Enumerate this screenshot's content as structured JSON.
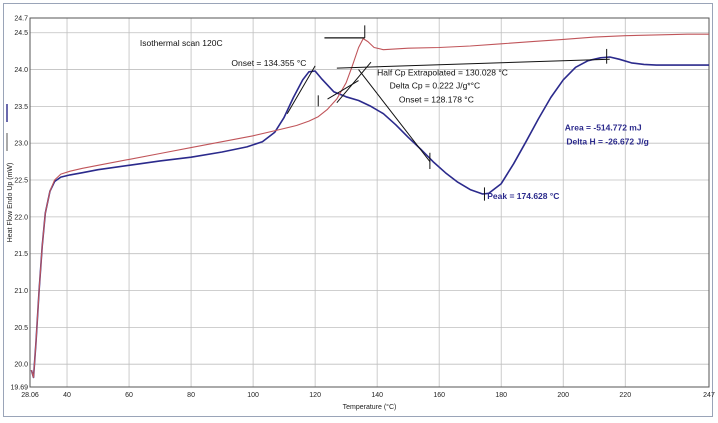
{
  "chart_data": {
    "type": "line",
    "title": "",
    "xlabel": "Temperature (°C)",
    "ylabel": "Heat Flow Endo Up (mW)",
    "xlim": [
      28.06,
      247
    ],
    "ylim": [
      19.69,
      24.7
    ],
    "x_tick_labels": [
      {
        "label": "28.06",
        "value": 28.06
      },
      {
        "label": "40",
        "value": 40
      },
      {
        "label": "60",
        "value": 60
      },
      {
        "label": "80",
        "value": 80
      },
      {
        "label": "100",
        "value": 100
      },
      {
        "label": "120",
        "value": 120
      },
      {
        "label": "140",
        "value": 140
      },
      {
        "label": "160",
        "value": 160
      },
      {
        "label": "180",
        "value": 180
      },
      {
        "label": "200",
        "value": 200
      },
      {
        "label": "220",
        "value": 220
      },
      {
        "label": "247",
        "value": 247
      }
    ],
    "y_tick_labels": [
      {
        "label": "19.69",
        "value": 19.69
      },
      {
        "label": "20.0",
        "value": 20.0
      },
      {
        "label": "20.5",
        "value": 20.5
      },
      {
        "label": "21.0",
        "value": 21.0
      },
      {
        "label": "21.5",
        "value": 21.5
      },
      {
        "label": "22.0",
        "value": 22.0
      },
      {
        "label": "22.5",
        "value": 22.5
      },
      {
        "label": "23.0",
        "value": 23.0
      },
      {
        "label": "23.5",
        "value": 23.5
      },
      {
        "label": "24.0",
        "value": 24.0
      },
      {
        "label": "24.5",
        "value": 24.5
      },
      {
        "label": "24.7",
        "value": 24.7
      }
    ],
    "grid": true,
    "series": [
      {
        "color": "#2b2a8c",
        "x": [
          28.5,
          29.2,
          30.0,
          31.0,
          32.0,
          33.0,
          34.5,
          36.0,
          38.0,
          41.0,
          45.0,
          50.0,
          60.0,
          70.0,
          80.0,
          90.0,
          98.0,
          103.0,
          107.0,
          110.0,
          113.0,
          116.0,
          118.0,
          120.0,
          122.0,
          126.0,
          130.0,
          134.0,
          138.0,
          142.0,
          146.0,
          150.0,
          154.0,
          158.0,
          162.0,
          166.0,
          170.0,
          174.0,
          176.0,
          180.0,
          184.0,
          188.0,
          192.0,
          196.0,
          200.0,
          204.0,
          208.0,
          212.0,
          215.0,
          218.0,
          222.0,
          226.0,
          230.0,
          236.0,
          242.0,
          247.0
        ],
        "y": [
          19.92,
          19.82,
          20.3,
          21.0,
          21.6,
          22.05,
          22.35,
          22.48,
          22.54,
          22.57,
          22.6,
          22.64,
          22.7,
          22.76,
          22.81,
          22.88,
          22.95,
          23.02,
          23.15,
          23.35,
          23.62,
          23.86,
          23.97,
          23.98,
          23.88,
          23.7,
          23.63,
          23.58,
          23.5,
          23.4,
          23.25,
          23.08,
          22.92,
          22.75,
          22.6,
          22.47,
          22.37,
          22.31,
          22.32,
          22.45,
          22.72,
          23.02,
          23.33,
          23.62,
          23.86,
          24.03,
          24.12,
          24.16,
          24.17,
          24.14,
          24.09,
          24.07,
          24.06,
          24.06,
          24.06,
          24.06
        ]
      },
      {
        "color": "#c0555a",
        "x": [
          28.5,
          29.2,
          30.0,
          31.0,
          32.0,
          33.0,
          34.5,
          36.0,
          38.0,
          41.0,
          45.0,
          50.0,
          60.0,
          70.0,
          80.0,
          90.0,
          100.0,
          108.0,
          114.0,
          118.0,
          121.0,
          124.0,
          127.0,
          130.0,
          132.0,
          134.0,
          135.5,
          137.0,
          139.0,
          142.0,
          146.0,
          150.0,
          160.0,
          170.0,
          180.0,
          190.0,
          200.0,
          210.0,
          220.0,
          230.0,
          240.0,
          247.0
        ],
        "y": [
          19.92,
          19.82,
          20.3,
          21.0,
          21.6,
          22.05,
          22.35,
          22.5,
          22.58,
          22.62,
          22.66,
          22.7,
          22.78,
          22.86,
          22.94,
          23.02,
          23.1,
          23.18,
          23.24,
          23.3,
          23.36,
          23.46,
          23.6,
          23.82,
          24.05,
          24.3,
          24.42,
          24.38,
          24.3,
          24.27,
          24.28,
          24.29,
          24.3,
          24.32,
          24.35,
          24.38,
          24.41,
          24.44,
          24.46,
          24.47,
          24.48,
          24.48
        ]
      }
    ],
    "annotations": {
      "isothermal": "Isothermal scan 120C",
      "onset1": "Onset = 134.355 °C",
      "half_cp": "Half Cp Extrapolated = 130.028 °C",
      "delta_cp": "Delta Cp = 0.222 J/g*°C",
      "onset2": "Onset = 128.178 °C",
      "area": "Area = -514.772 mJ",
      "delta_h": "Delta H = -26.672 J/g",
      "peak": "Peak = 174.628 °C"
    }
  }
}
